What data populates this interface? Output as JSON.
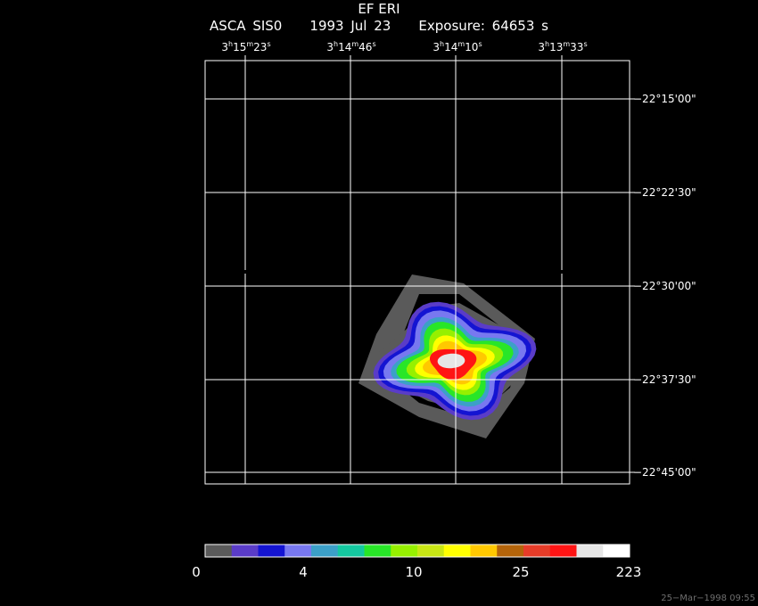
{
  "header": {
    "target": "EF ERI",
    "instrument": "ASCA SIS0",
    "date": "1993 Jul 23",
    "exposure": "Exposure: 64653 s"
  },
  "chart_data": {
    "type": "heatmap",
    "ra_ticks": [
      {
        "h": "3",
        "m": "15",
        "s": "23"
      },
      {
        "h": "3",
        "m": "14",
        "s": "46"
      },
      {
        "h": "3",
        "m": "14",
        "s": "10"
      },
      {
        "h": "3",
        "m": "13",
        "s": "33"
      }
    ],
    "dec_ticks": [
      "−22°15'00\"",
      "−22°22'30\"",
      "−22°30'00\"",
      "−22°37'30\"",
      "−22°45'00\""
    ],
    "colorbar": {
      "colors": [
        "#5a5a5a",
        "#5a3cc8",
        "#1414d2",
        "#7878f0",
        "#3ca0c8",
        "#14c8a0",
        "#28e628",
        "#96f000",
        "#c8e614",
        "#ffff00",
        "#ffc800",
        "#b4640a",
        "#e63c28",
        "#ff1414",
        "#e6e6e6",
        "#ffffff"
      ],
      "tick_labels": [
        "0",
        "4",
        "10",
        "25",
        "223"
      ],
      "tick_levels": [
        0,
        4,
        10,
        25,
        223
      ]
    },
    "source_center": {
      "ra": "3h14m10s",
      "dec": "−22°36'"
    },
    "grid": true
  },
  "footer": {
    "timestamp": "25−Mar−1998 09:55"
  }
}
